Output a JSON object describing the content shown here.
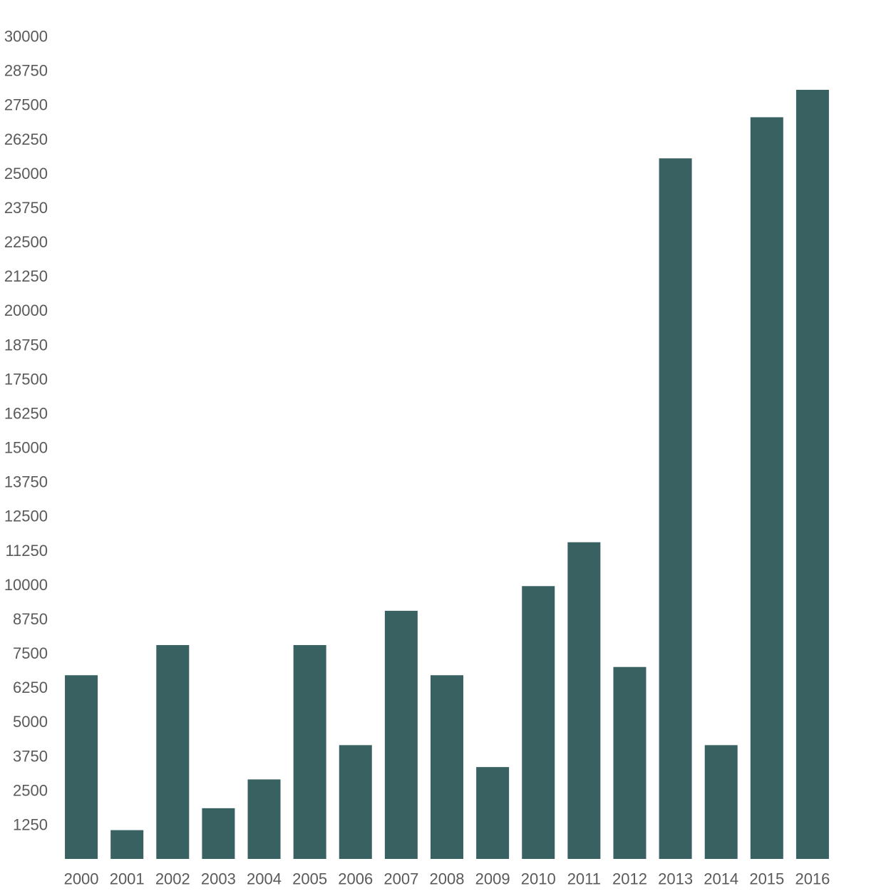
{
  "chart_data": {
    "type": "bar",
    "title": "",
    "xlabel": "",
    "ylabel": "",
    "categories": [
      "2000",
      "2001",
      "2002",
      "2003",
      "2004",
      "2005",
      "2006",
      "2007",
      "2008",
      "2009",
      "2010",
      "2011",
      "2012",
      "2013",
      "2014",
      "2015",
      "2016"
    ],
    "values": [
      6700,
      1050,
      7800,
      1850,
      2900,
      7800,
      4150,
      9050,
      6700,
      3350,
      9950,
      11550,
      7000,
      25550,
      4150,
      27050,
      28050
    ],
    "ylim": [
      0,
      30000
    ],
    "yticks": [
      "1250",
      "2500",
      "3750",
      "5000",
      "6250",
      "7500",
      "8750",
      "10000",
      "11250",
      "12500",
      "13750",
      "15000",
      "16250",
      "17500",
      "18750",
      "20000",
      "21250",
      "22500",
      "23750",
      "25000",
      "26250",
      "27500",
      "28750",
      "30000"
    ],
    "grid": false,
    "legend": "none",
    "bar_color": "#3a6161",
    "tick_label_color": "#5a5a5a"
  }
}
